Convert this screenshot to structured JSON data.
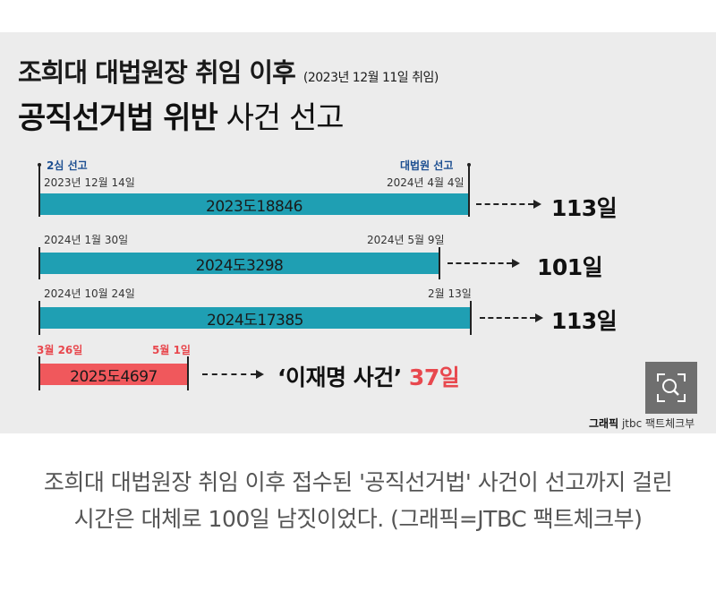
{
  "graphic": {
    "title_line1": "조희대 대법원장 취임 이후",
    "title_line1_note": "(2023년 12월 11일 취임)",
    "title_line2_bold": "공직선거법 위반",
    "title_line2_rest": " 사건 선고",
    "label_second_trial": "2심 선고",
    "label_supreme_court": "대법원 선고",
    "cases": [
      {
        "start": "2023년 12월 14일",
        "end": "2024년 4월 4일",
        "case_no": "2023도18846",
        "result": "113일"
      },
      {
        "start": "2024년 1월 30일",
        "end": "2024년 5월 9일",
        "case_no": "2024도3298",
        "result": "101일"
      },
      {
        "start": "2024년 10월 24일",
        "end": "2월 13일",
        "case_no": "2024도17385",
        "result": "113일"
      },
      {
        "start": "3월 26일",
        "end": "5월 1일",
        "case_no": "2025도4697",
        "result_label": "‘이재명 사건’",
        "result": "37일"
      }
    ],
    "credit_bold": "그래픽",
    "credit_rest": " jtbc 팩트체크부",
    "zoom_icon": "magnify-icon"
  },
  "caption": "조희대 대법원장 취임 이후 접수된 '공직선거법' 사건이 선고까지 걸린 시간은 대체로 100일 남짓이었다. (그래픽=JTBC 팩트체크부)",
  "colors": {
    "bar_teal": "#1f9fb3",
    "bar_red": "#f0585c",
    "accent_red": "#e8484e",
    "label_blue": "#1d4f91"
  }
}
